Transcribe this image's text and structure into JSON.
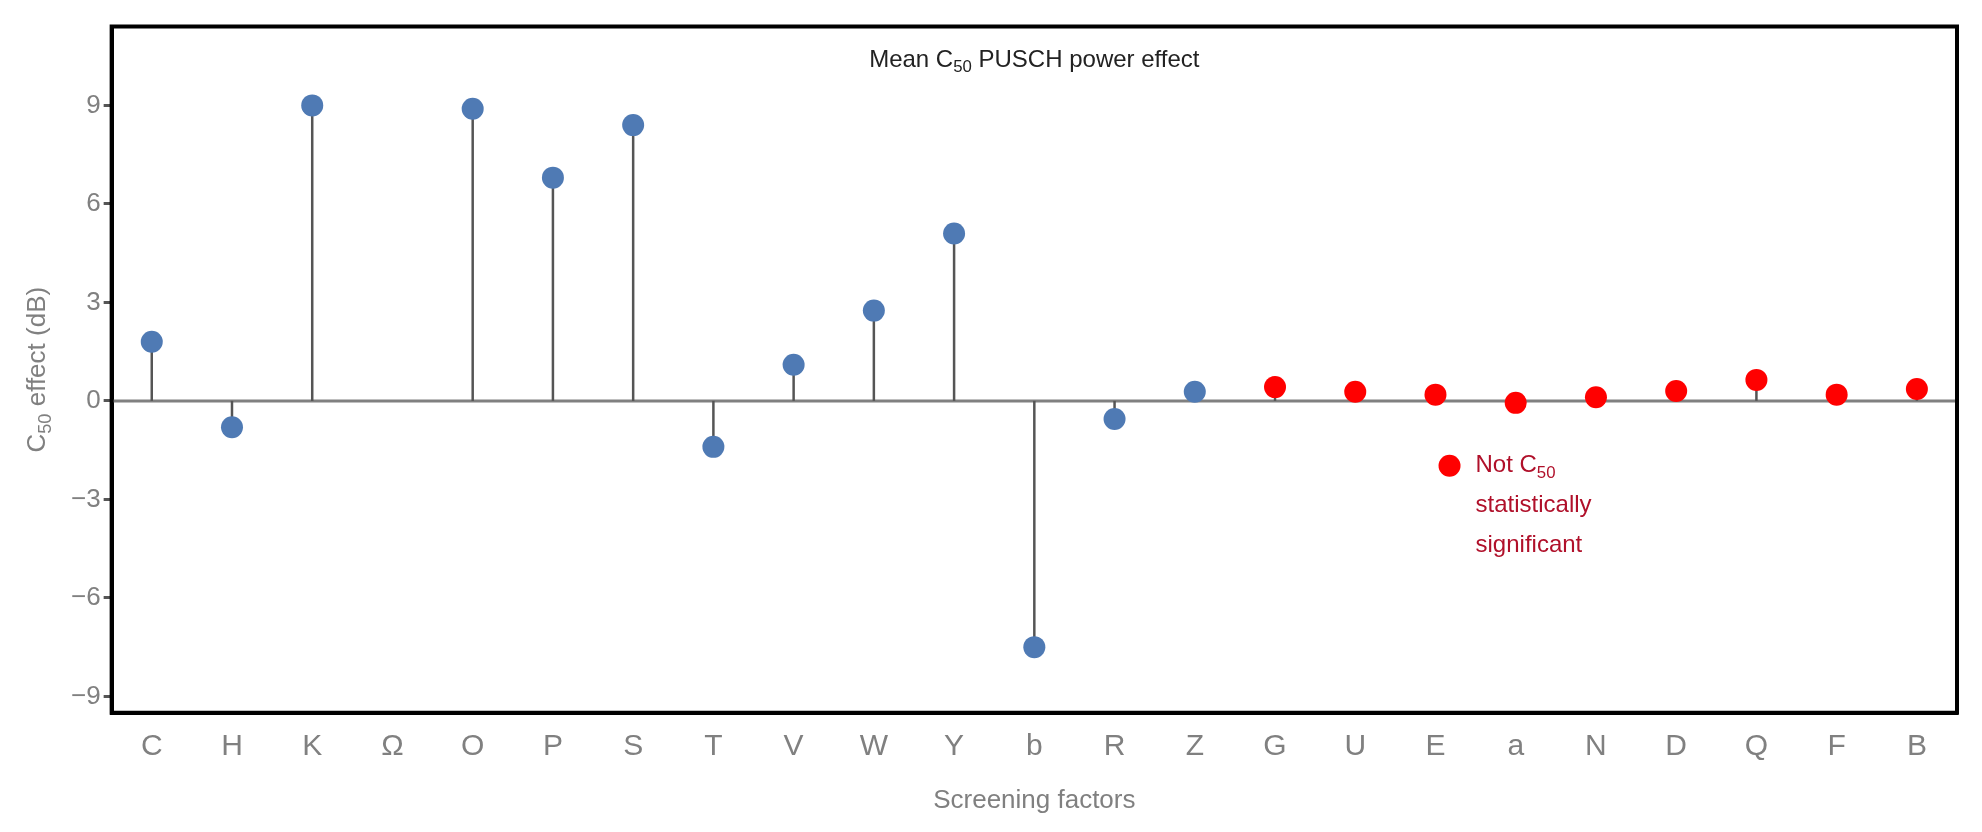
{
  "chart_data": {
    "type": "lollipop",
    "title": "Mean C$_{50}$ PUSCH power effect",
    "xlabel": "Screening factors",
    "ylabel": "C$_{50}$ effect (dB)",
    "categories": [
      "C",
      "H",
      "K",
      "Ω",
      "O",
      "P",
      "S",
      "T",
      "V",
      "W",
      "Y",
      "b",
      "R",
      "Z",
      "G",
      "U",
      "E",
      "a",
      "N",
      "D",
      "Q",
      "F",
      "B"
    ],
    "series": [
      {
        "color": "#4f7ab4",
        "values": [
          1.8,
          -0.8,
          9.0,
          null,
          8.9,
          6.8,
          8.4,
          -1.4,
          1.1,
          2.75,
          5.1,
          -7.5,
          -0.55,
          0.28,
          null,
          null,
          null,
          null,
          null,
          null,
          null,
          null,
          null
        ]
      },
      {
        "name": "Not C$_{50}$ statistically significant",
        "color": "#ff0000",
        "values": [
          null,
          null,
          null,
          null,
          null,
          null,
          null,
          null,
          null,
          null,
          null,
          null,
          null,
          null,
          0.42,
          0.28,
          0.19,
          -0.06,
          0.11,
          0.3,
          0.64,
          0.19,
          0.36
        ]
      }
    ],
    "ylim": [
      -9.5,
      11.4
    ],
    "yticks": [
      -9,
      -6,
      -3,
      0,
      3,
      6,
      9
    ],
    "ref_lines": [
      {
        "axis": "y",
        "value": 0
      }
    ],
    "grid": false,
    "legend": "right",
    "marker": "circle"
  }
}
